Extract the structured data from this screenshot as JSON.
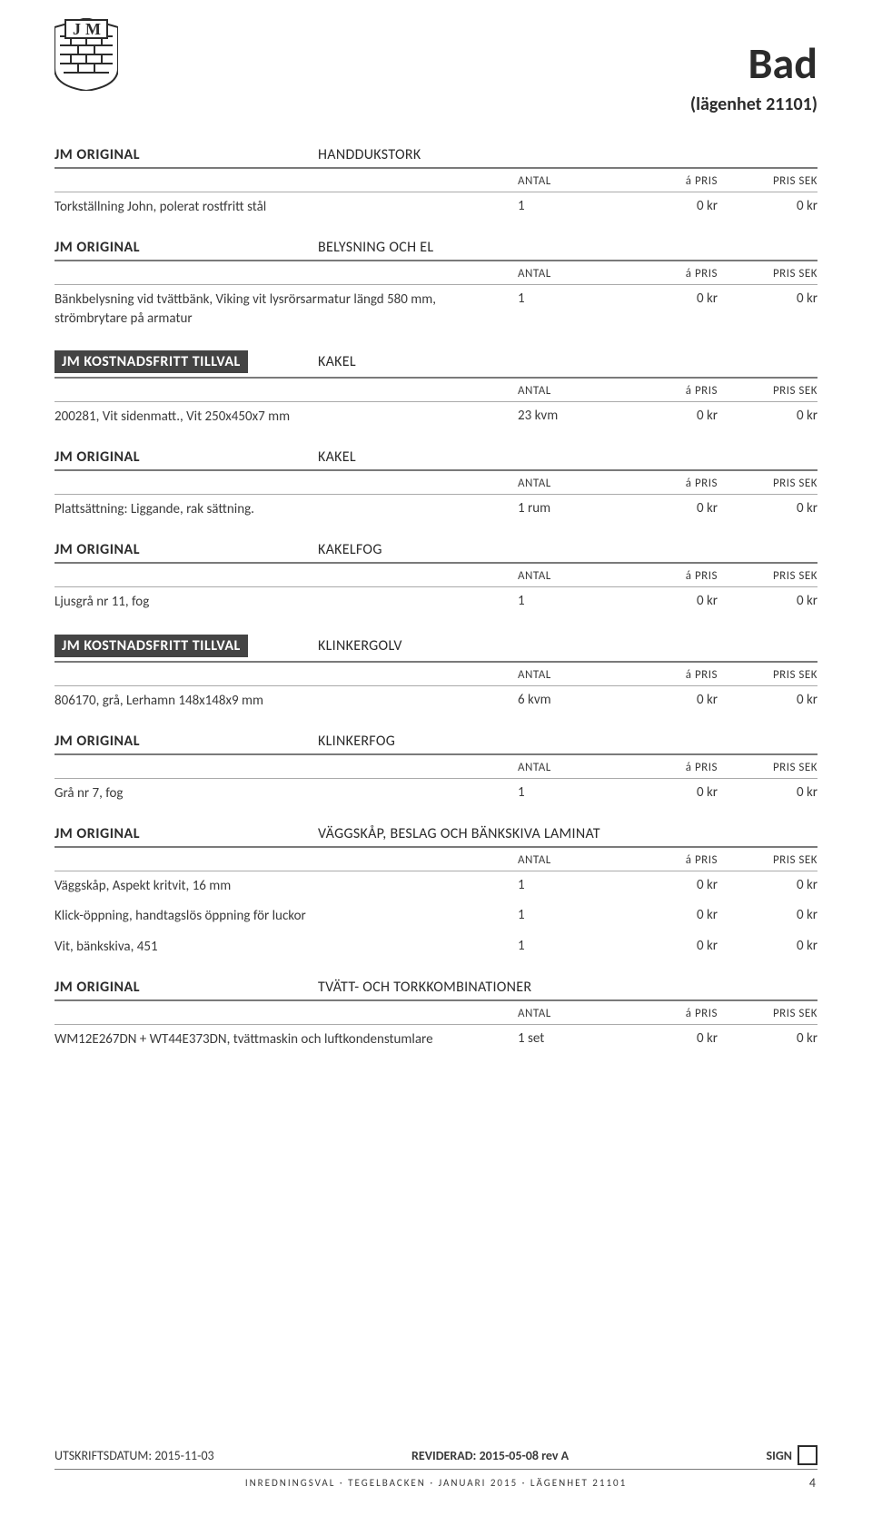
{
  "page": {
    "title": "Bad",
    "subtitle": "(lägenhet 21101)",
    "page_number": "4"
  },
  "columns": {
    "antal": "ANTAL",
    "apris": "á PRIS",
    "pris": "PRIS SEK"
  },
  "sections": [
    {
      "brand": "JM ORIGINAL",
      "boxed": false,
      "category": "HANDDUKSTORK",
      "rows": [
        {
          "desc": "Torkställning John, polerat rostfritt stål",
          "antal": "1",
          "apris": "0 kr",
          "pris": "0 kr"
        }
      ]
    },
    {
      "brand": "JM ORIGINAL",
      "boxed": false,
      "category": "BELYSNING OCH EL",
      "rows": [
        {
          "desc": "Bänkbelysning vid tvättbänk, Viking vit lysrörsarmatur längd 580 mm, strömbrytare på armatur",
          "antal": "1",
          "apris": "0 kr",
          "pris": "0 kr"
        }
      ]
    },
    {
      "brand": "JM KOSTNADSFRITT TILLVAL",
      "boxed": true,
      "category": "KAKEL",
      "rows": [
        {
          "desc": "200281, Vit sidenmatt., Vit 250x450x7 mm",
          "antal": "23 kvm",
          "apris": "0 kr",
          "pris": "0 kr"
        }
      ]
    },
    {
      "brand": "JM ORIGINAL",
      "boxed": false,
      "category": "KAKEL",
      "rows": [
        {
          "desc": "Plattsättning: Liggande, rak sättning.",
          "antal": "1 rum",
          "apris": "0 kr",
          "pris": "0 kr"
        }
      ]
    },
    {
      "brand": "JM ORIGINAL",
      "boxed": false,
      "category": "KAKELFOG",
      "rows": [
        {
          "desc": "Ljusgrå nr 11, fog",
          "antal": "1",
          "apris": "0 kr",
          "pris": "0 kr"
        }
      ]
    },
    {
      "brand": "JM KOSTNADSFRITT TILLVAL",
      "boxed": true,
      "category": "KLINKERGOLV",
      "rows": [
        {
          "desc": "806170, grå, Lerhamn 148x148x9 mm",
          "antal": "6 kvm",
          "apris": "0 kr",
          "pris": "0 kr"
        }
      ]
    },
    {
      "brand": "JM ORIGINAL",
      "boxed": false,
      "category": "KLINKERFOG",
      "rows": [
        {
          "desc": "Grå nr 7, fog",
          "antal": "1",
          "apris": "0 kr",
          "pris": "0 kr"
        }
      ]
    },
    {
      "brand": "JM ORIGINAL",
      "boxed": false,
      "category": "VÄGGSKÅP, BESLAG OCH BÄNKSKIVA LAMINAT",
      "rows": [
        {
          "desc": "Väggskåp, Aspekt kritvit, 16 mm",
          "antal": "1",
          "apris": "0 kr",
          "pris": "0 kr"
        },
        {
          "desc": "Klick-öppning, handtagslös öppning för luckor",
          "antal": "1",
          "apris": "0 kr",
          "pris": "0 kr"
        },
        {
          "desc": "Vit, bänkskiva, 451",
          "antal": "1",
          "apris": "0 kr",
          "pris": "0 kr"
        }
      ]
    },
    {
      "brand": "JM ORIGINAL",
      "boxed": false,
      "category": "TVÄTT- OCH TORKKOMBINATIONER",
      "rows": [
        {
          "desc": "WM12E267DN + WT44E373DN, tvättmaskin och luftkondenstumlare",
          "antal": "1 set",
          "apris": "0 kr",
          "pris": "0 kr"
        }
      ]
    }
  ],
  "footer": {
    "print_date": "UTSKRIFTSDATUM: 2015-11-03",
    "revised": "REVIDERAD: 2015-05-08 rev A",
    "sign": "SIGN",
    "bottom": "INREDNINGSVAL  ·  TEGELBACKEN  ·  JANUARI 2015  ·  LÄGENHET 21101"
  }
}
